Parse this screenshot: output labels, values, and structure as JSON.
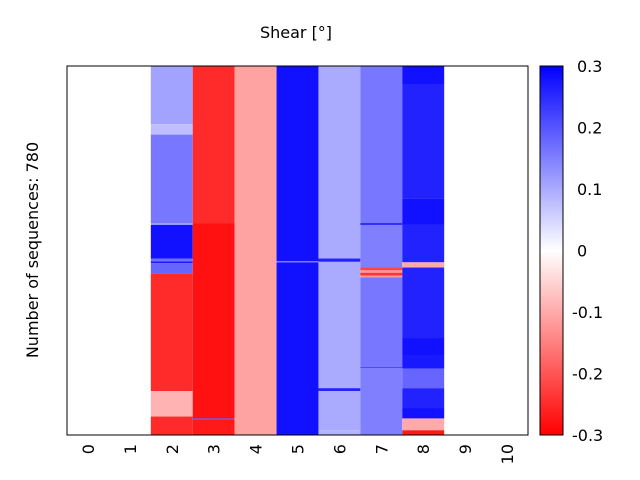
{
  "chart_data": {
    "type": "heatmap",
    "title": "Shear [°]",
    "ylabel": "Number of sequences: 780",
    "xlabel": "",
    "n_rows": 780,
    "x_ticks": [
      "0",
      "1",
      "2",
      "3",
      "4",
      "5",
      "6",
      "7",
      "8",
      "9",
      "10"
    ],
    "colorbar": {
      "range": [
        -0.3,
        0.3
      ],
      "ticks": [
        "0.3",
        "0.2",
        "0.1",
        "0",
        "-0.1",
        "-0.2",
        "-0.3"
      ],
      "tick_values": [
        0.3,
        0.2,
        0.1,
        0,
        -0.1,
        -0.2,
        -0.3
      ],
      "low_color": "#ff0000",
      "mid_color": "#ffffff",
      "high_color": "#0000ff"
    },
    "columns": [
      {
        "index": 2,
        "segments": [
          [
            0,
            123,
            0.11
          ],
          [
            123,
            145,
            0.075
          ],
          [
            145,
            332,
            0.16
          ],
          [
            332,
            336,
            0.12
          ],
          [
            336,
            407,
            0.28
          ],
          [
            407,
            413,
            0.17
          ],
          [
            413,
            417,
            0.27
          ],
          [
            417,
            438,
            0.18
          ],
          [
            438,
            687,
            -0.25
          ],
          [
            687,
            741,
            -0.09
          ],
          [
            741,
            780,
            -0.25
          ]
        ]
      },
      {
        "index": 3,
        "segments": [
          [
            0,
            332,
            -0.25
          ],
          [
            332,
            745,
            -0.28
          ],
          [
            745,
            747,
            0.2
          ],
          [
            747,
            780,
            -0.27
          ]
        ]
      },
      {
        "index": 4,
        "segments": [
          [
            0,
            780,
            -0.11
          ]
        ]
      },
      {
        "index": 5,
        "segments": [
          [
            0,
            413,
            0.28
          ],
          [
            413,
            415,
            0.12
          ],
          [
            415,
            780,
            0.28
          ]
        ]
      },
      {
        "index": 6,
        "segments": [
          [
            0,
            407,
            0.1
          ],
          [
            407,
            414,
            0.26
          ],
          [
            414,
            681,
            0.1
          ],
          [
            681,
            687,
            0.26
          ],
          [
            687,
            770,
            0.1
          ],
          [
            770,
            780,
            0.09
          ]
        ]
      },
      {
        "index": 7,
        "segments": [
          [
            0,
            332,
            0.16
          ],
          [
            332,
            336,
            0.26
          ],
          [
            336,
            426,
            0.15
          ],
          [
            426,
            432,
            -0.22
          ],
          [
            432,
            437,
            -0.12
          ],
          [
            437,
            443,
            -0.24
          ],
          [
            443,
            447,
            -0.12
          ],
          [
            447,
            636,
            0.16
          ],
          [
            636,
            638,
            0.26
          ],
          [
            638,
            780,
            0.15
          ]
        ]
      },
      {
        "index": 8,
        "segments": [
          [
            0,
            40,
            0.28
          ],
          [
            40,
            281,
            0.26
          ],
          [
            281,
            336,
            0.28
          ],
          [
            336,
            415,
            0.26
          ],
          [
            415,
            426,
            -0.1
          ],
          [
            426,
            575,
            0.26
          ],
          [
            575,
            612,
            0.28
          ],
          [
            612,
            640,
            0.27
          ],
          [
            640,
            681,
            0.18
          ],
          [
            681,
            723,
            0.26
          ],
          [
            723,
            745,
            0.28
          ],
          [
            745,
            770,
            -0.1
          ],
          [
            770,
            780,
            -0.27
          ]
        ]
      }
    ]
  }
}
